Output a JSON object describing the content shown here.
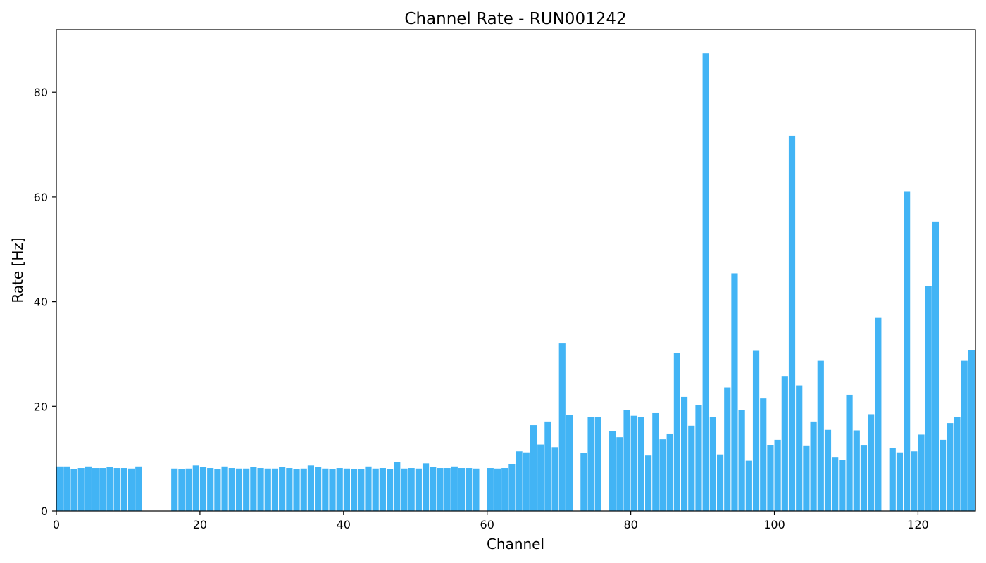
{
  "chart_data": {
    "type": "bar",
    "title": "Channel Rate - RUN001242",
    "xlabel": "Channel",
    "ylabel": "Rate [Hz]",
    "xlim": [
      0,
      128
    ],
    "ylim": [
      0,
      92
    ],
    "xticks": [
      0,
      20,
      40,
      60,
      80,
      100,
      120
    ],
    "yticks": [
      0,
      20,
      40,
      60,
      80
    ],
    "grid": false,
    "bar_color": "#42b4f5",
    "x": [
      0,
      1,
      2,
      3,
      4,
      5,
      6,
      7,
      8,
      9,
      10,
      11,
      12,
      13,
      14,
      15,
      16,
      17,
      18,
      19,
      20,
      21,
      22,
      23,
      24,
      25,
      26,
      27,
      28,
      29,
      30,
      31,
      32,
      33,
      34,
      35,
      36,
      37,
      38,
      39,
      40,
      41,
      42,
      43,
      44,
      45,
      46,
      47,
      48,
      49,
      50,
      51,
      52,
      53,
      54,
      55,
      56,
      57,
      58,
      59,
      60,
      61,
      62,
      63,
      64,
      65,
      66,
      67,
      68,
      69,
      70,
      71,
      72,
      73,
      74,
      75,
      76,
      77,
      78,
      79,
      80,
      81,
      82,
      83,
      84,
      85,
      86,
      87,
      88,
      89,
      90,
      91,
      92,
      93,
      94,
      95,
      96,
      97,
      98,
      99,
      100,
      101,
      102,
      103,
      104,
      105,
      106,
      107,
      108,
      109,
      110,
      111,
      112,
      113,
      114,
      115,
      116,
      117,
      118,
      119,
      120,
      121,
      122,
      123,
      124,
      125,
      126,
      127
    ],
    "values": [
      8.5,
      8.5,
      8.0,
      8.2,
      8.5,
      8.2,
      8.2,
      8.4,
      8.2,
      8.2,
      8.1,
      8.5,
      0,
      0,
      0,
      0,
      8.1,
      8.0,
      8.1,
      8.7,
      8.4,
      8.2,
      8.0,
      8.5,
      8.2,
      8.1,
      8.1,
      8.4,
      8.2,
      8.1,
      8.1,
      8.4,
      8.2,
      8.0,
      8.1,
      8.7,
      8.4,
      8.1,
      8.0,
      8.2,
      8.1,
      8.0,
      8.0,
      8.5,
      8.1,
      8.2,
      8.0,
      9.4,
      8.1,
      8.2,
      8.1,
      9.1,
      8.4,
      8.2,
      8.2,
      8.5,
      8.2,
      8.2,
      8.1,
      0,
      8.2,
      8.1,
      8.2,
      8.9,
      11.4,
      11.2,
      16.4,
      12.7,
      17.1,
      12.2,
      32.0,
      18.3,
      0,
      11.1,
      17.9,
      17.9,
      0,
      15.2,
      14.1,
      19.3,
      18.2,
      17.9,
      10.6,
      18.7,
      13.7,
      14.8,
      30.2,
      21.8,
      16.3,
      20.3,
      87.4,
      18.0,
      10.8,
      23.6,
      45.4,
      19.3,
      9.6,
      30.6,
      21.5,
      12.6,
      13.6,
      25.8,
      71.7,
      24.0,
      12.4,
      17.1,
      28.7,
      15.5,
      10.2,
      9.8,
      22.2,
      15.4,
      12.5,
      18.5,
      36.9,
      0,
      12.0,
      11.2,
      61.0,
      11.4,
      14.6,
      43.0,
      55.3,
      13.6,
      16.8,
      17.9,
      28.7,
      30.8
    ]
  }
}
